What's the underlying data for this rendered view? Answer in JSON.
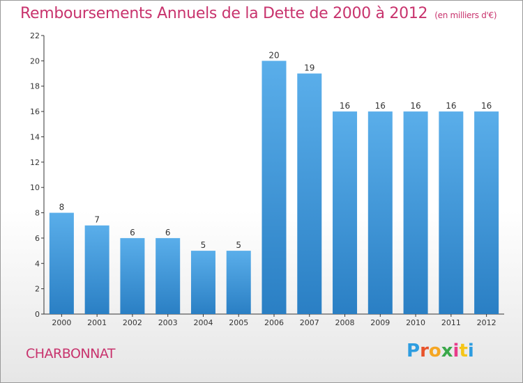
{
  "header": {
    "title": "Remboursements Annuels de la Dette de 2000 à 2012",
    "unit": "(en milliers d'€)"
  },
  "commune": "CHARBONNAT",
  "logo": {
    "letters": [
      "P",
      "r",
      "o",
      "x",
      "i",
      "t",
      "i"
    ],
    "colors": [
      "#2e9de0",
      "#e8532b",
      "#f5a623",
      "#3aa84a",
      "#e83b8a",
      "#f5c518",
      "#2e9de0"
    ]
  },
  "colors": {
    "bar_top": "#5aaeea",
    "bar_bottom": "#2a7fc4",
    "text": "#c8336d"
  },
  "chart_data": {
    "type": "bar",
    "categories": [
      "2000",
      "2001",
      "2002",
      "2003",
      "2004",
      "2005",
      "2006",
      "2007",
      "2008",
      "2009",
      "2010",
      "2011",
      "2012"
    ],
    "values": [
      8,
      7,
      6,
      6,
      5,
      5,
      20,
      19,
      16,
      16,
      16,
      16,
      16
    ],
    "title": "Remboursements Annuels de la Dette de 2000 à 2012",
    "ylim": [
      0,
      22
    ],
    "yticks": [
      0,
      2,
      4,
      6,
      8,
      10,
      12,
      14,
      16,
      18,
      20,
      22
    ],
    "grid": false,
    "data_labels": true
  }
}
